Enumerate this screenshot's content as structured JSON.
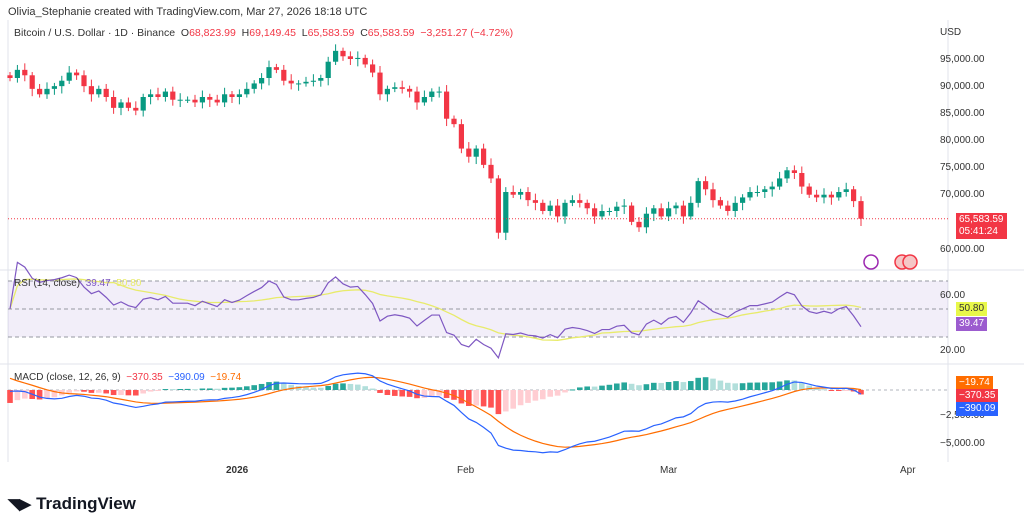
{
  "credit": "Olivia_Stephanie created with TradingView.com, Mar 27, 2026 18:18 UTC",
  "symbol": {
    "name": "Bitcoin / U.S. Dollar · 1D · Binance",
    "o_label": "O",
    "o": "68,823.99",
    "h_label": "H",
    "h": "69,149.45",
    "l_label": "L",
    "l": "65,583.59",
    "c_label": "C",
    "c": "65,583.59",
    "change": "−3,251.27 (−4.72%)"
  },
  "currency": "USD",
  "price_axis": [
    "95,000.00",
    "90,000.00",
    "85,000.00",
    "80,000.00",
    "75,000.00",
    "70,000.00",
    "60,000.00"
  ],
  "last_price": {
    "price": "65,583.59",
    "countdown": "05:41:24"
  },
  "rsi": {
    "label": "RSI (14, close)",
    "value": "39.47",
    "ma": "50.80",
    "axis": [
      "60.00",
      "20.00"
    ]
  },
  "macd": {
    "label": "MACD (close, 12, 26, 9)",
    "hist": "−370.35",
    "macd": "−390.09",
    "signal": "−19.74",
    "tag_signal": "−19.74",
    "tag_hist": "−370.35",
    "tag_macd": "−390.09",
    "axis": [
      "−2,500.00",
      "−5,000.00"
    ]
  },
  "time_axis": [
    "2026",
    "Feb",
    "Mar",
    "Apr"
  ],
  "logo": "TradingView",
  "colors": {
    "up": "#089981",
    "down": "#f23645",
    "rsi": "#7e57c2",
    "rsi_ma": "#e8eb6b",
    "macd": "#2962ff",
    "signal": "#ff6d00"
  },
  "chart_data": {
    "type": "candlestick",
    "start": "2025-12-01",
    "end": "2026-03-27",
    "interval": "1D",
    "close_thousands": [
      91.5,
      93,
      92,
      89.5,
      88.5,
      89.5,
      90,
      91,
      92.5,
      92,
      90,
      88.5,
      89.5,
      88,
      86,
      87,
      86,
      85.5,
      88,
      88.5,
      88,
      89,
      87.5,
      87.5,
      87.5,
      87,
      88,
      87.5,
      87,
      88.5,
      88,
      88.5,
      89.5,
      90.5,
      91.5,
      93.5,
      93,
      91,
      90.5,
      90.5,
      90.8,
      91,
      91.5,
      94.5,
      96.5,
      95.5,
      95,
      95.2,
      94,
      92.5,
      88.5,
      89.5,
      89.8,
      89.5,
      89,
      87,
      88,
      89,
      89,
      84,
      83,
      78.5,
      77,
      78.5,
      75.5,
      73,
      63,
      70.5,
      70,
      70.5,
      69,
      68.5,
      67,
      68,
      66,
      68.5,
      69,
      68.5,
      67.5,
      66,
      67,
      67,
      67.8,
      68,
      65,
      64,
      66.5,
      67.5,
      66,
      67.5,
      68,
      66,
      68.5,
      72.5,
      71,
      69,
      68,
      67,
      68.5,
      69.5,
      70.5,
      70.5,
      71,
      71.5,
      73,
      74.5,
      74,
      71.5,
      70,
      69.5,
      70,
      69.5,
      70.5,
      71,
      68.82,
      65.58
    ],
    "ylim": [
      58000,
      98000
    ]
  }
}
